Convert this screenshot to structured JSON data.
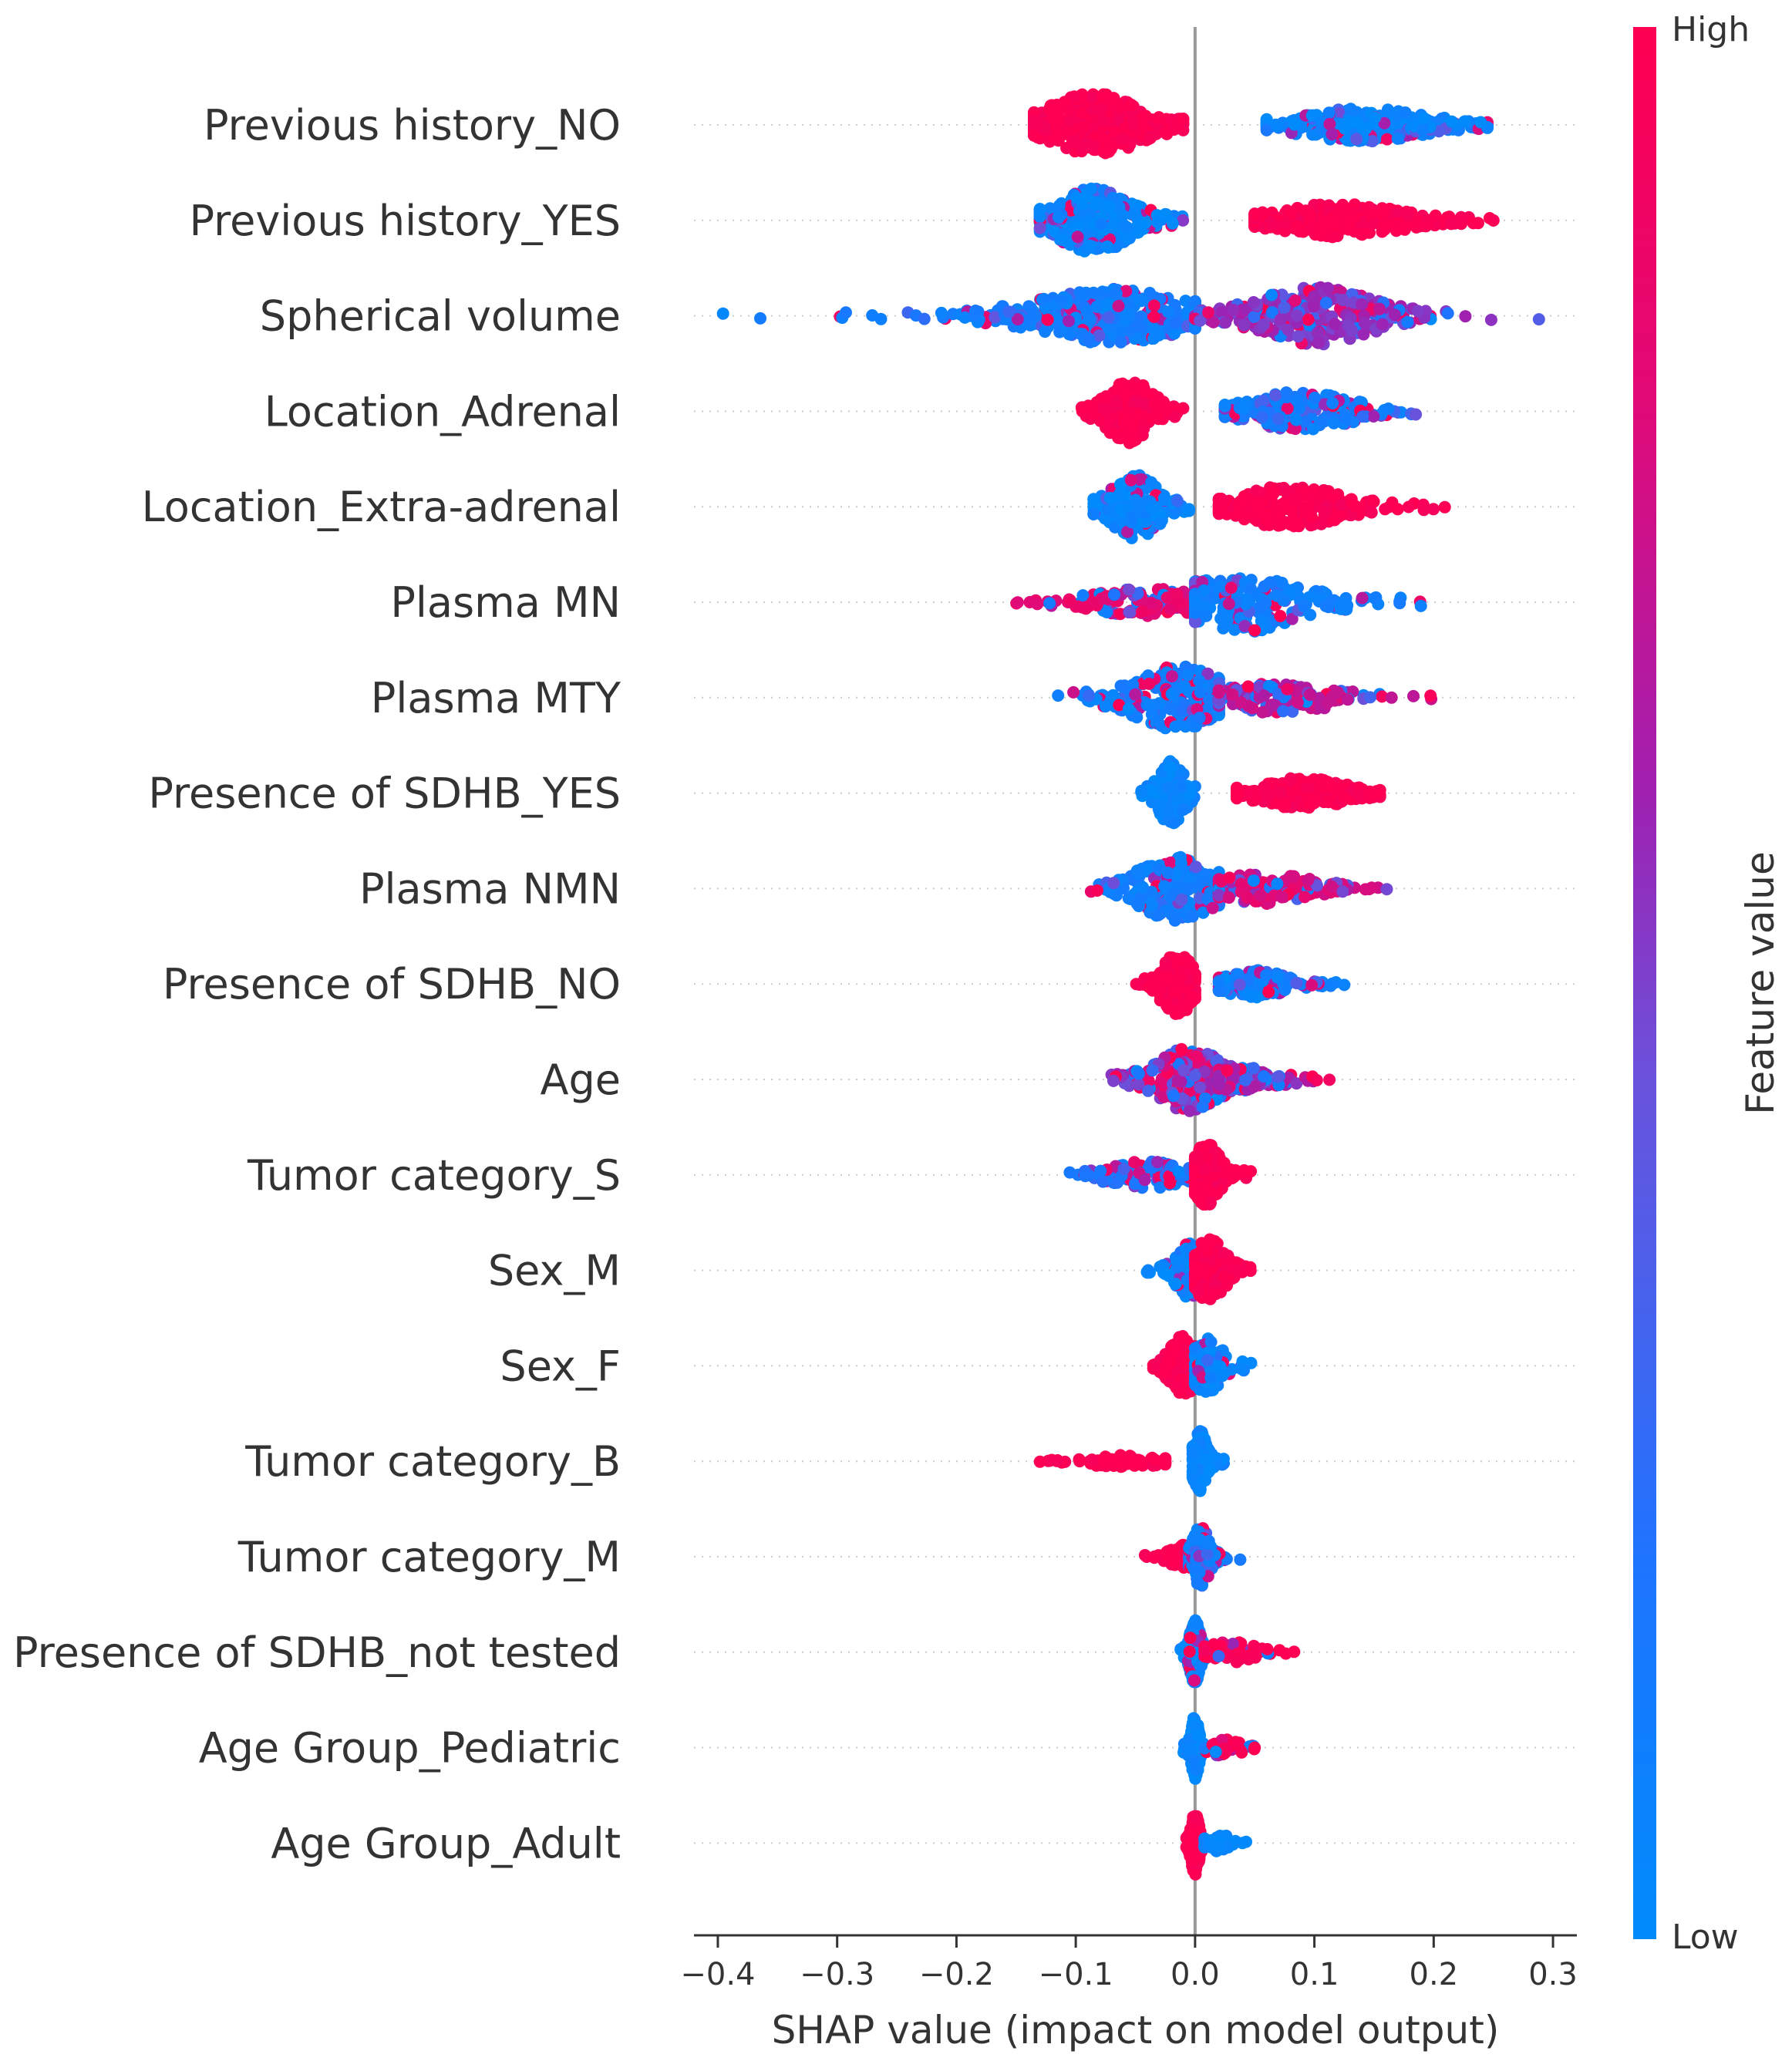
{
  "chart_data": {
    "type": "scatter",
    "subtype": "shap-beeswarm",
    "xlabel": "SHAP value (impact on model output)",
    "xlim": [
      -0.42,
      0.32
    ],
    "xticks": [
      -0.4,
      -0.3,
      -0.2,
      -0.1,
      0.0,
      0.1,
      0.2,
      0.3
    ],
    "xtick_labels": [
      "−0.4",
      "−0.3",
      "−0.2",
      "−0.1",
      "0.0",
      "0.1",
      "0.2",
      "0.3"
    ],
    "colorbar": {
      "title": "Feature value",
      "high_label": "High",
      "low_label": "Low",
      "high_color": "#ff0052",
      "low_color": "#008bfb"
    },
    "features": [
      {
        "name": "Previous history_NO",
        "clusters": [
          {
            "center": -0.085,
            "spread": 0.035,
            "range": [
              -0.135,
              -0.01
            ],
            "n": 320,
            "width": 0.42,
            "color": 1.0
          },
          {
            "center": 0.14,
            "spread": 0.05,
            "range": [
              0.06,
              0.245
            ],
            "n": 300,
            "width": 0.22,
            "color": 0.05,
            "mix": 0.2
          }
        ]
      },
      {
        "name": "Previous history_YES",
        "clusters": [
          {
            "center": -0.085,
            "spread": 0.03,
            "range": [
              -0.13,
              -0.01
            ],
            "n": 300,
            "width": 0.42,
            "color": 0.05,
            "mix": 0.25
          },
          {
            "center": 0.12,
            "spread": 0.05,
            "range": [
              0.05,
              0.25
            ],
            "n": 320,
            "width": 0.22,
            "color": 1.0
          }
        ]
      },
      {
        "name": "Spherical volume",
        "clusters": [
          {
            "center": -0.07,
            "spread": 0.06,
            "range": [
              -0.4,
              0.0
            ],
            "n": 360,
            "width": 0.36,
            "color": 0.1,
            "mix": 0.25
          },
          {
            "center": 0.1,
            "spread": 0.045,
            "range": [
              0.0,
              0.29
            ],
            "n": 300,
            "width": 0.38,
            "color": 0.55,
            "mix": 0.5
          }
        ]
      },
      {
        "name": "Location_Adrenal",
        "clusters": [
          {
            "center": -0.055,
            "spread": 0.018,
            "range": [
              -0.095,
              -0.01
            ],
            "n": 200,
            "width": 0.42,
            "color": 1.0
          },
          {
            "center": 0.09,
            "spread": 0.04,
            "range": [
              0.025,
              0.185
            ],
            "n": 220,
            "width": 0.26,
            "color": 0.1,
            "mix": 0.4
          }
        ]
      },
      {
        "name": "Location_Extra-adrenal",
        "clusters": [
          {
            "center": -0.05,
            "spread": 0.018,
            "range": [
              -0.085,
              -0.005
            ],
            "n": 200,
            "width": 0.42,
            "color": 0.05,
            "mix": 0.2
          },
          {
            "center": 0.08,
            "spread": 0.04,
            "range": [
              0.02,
              0.21
            ],
            "n": 240,
            "width": 0.28,
            "color": 1.0
          }
        ]
      },
      {
        "name": "Plasma MN",
        "clusters": [
          {
            "center": -0.04,
            "spread": 0.045,
            "range": [
              -0.15,
              0.0
            ],
            "n": 160,
            "width": 0.18,
            "color": 0.85,
            "mix": 0.4
          },
          {
            "center": 0.04,
            "spread": 0.045,
            "range": [
              0.0,
              0.195
            ],
            "n": 220,
            "width": 0.4,
            "color": 0.1,
            "mix": 0.2
          }
        ]
      },
      {
        "name": "Plasma MTY",
        "clusters": [
          {
            "center": -0.015,
            "spread": 0.035,
            "range": [
              -0.125,
              0.02
            ],
            "n": 260,
            "width": 0.42,
            "color": 0.1,
            "mix": 0.3
          },
          {
            "center": 0.07,
            "spread": 0.045,
            "range": [
              0.02,
              0.21
            ],
            "n": 160,
            "width": 0.2,
            "color": 0.7,
            "mix": 0.55
          }
        ]
      },
      {
        "name": "Presence of SDHB_YES",
        "clusters": [
          {
            "center": -0.02,
            "spread": 0.01,
            "range": [
              -0.045,
              0.0
            ],
            "n": 150,
            "width": 0.42,
            "color": 0.05
          },
          {
            "center": 0.09,
            "spread": 0.035,
            "range": [
              0.035,
              0.155
            ],
            "n": 200,
            "width": 0.2,
            "color": 1.0
          }
        ]
      },
      {
        "name": "Plasma NMN",
        "clusters": [
          {
            "center": -0.015,
            "spread": 0.03,
            "range": [
              -0.1,
              0.02
            ],
            "n": 230,
            "width": 0.42,
            "color": 0.1,
            "mix": 0.3
          },
          {
            "center": 0.06,
            "spread": 0.04,
            "range": [
              0.02,
              0.17
            ],
            "n": 150,
            "width": 0.2,
            "color": 0.8,
            "mix": 0.4
          }
        ]
      },
      {
        "name": "Presence of SDHB_NO",
        "clusters": [
          {
            "center": -0.015,
            "spread": 0.012,
            "range": [
              -0.05,
              0.0
            ],
            "n": 170,
            "width": 0.42,
            "color": 1.0
          },
          {
            "center": 0.05,
            "spread": 0.025,
            "range": [
              0.02,
              0.125
            ],
            "n": 140,
            "width": 0.18,
            "color": 0.1,
            "mix": 0.3
          }
        ]
      },
      {
        "name": "Age",
        "clusters": [
          {
            "center": -0.005,
            "spread": 0.025,
            "range": [
              -0.07,
              0.03
            ],
            "n": 260,
            "width": 0.42,
            "color": 0.5,
            "mix": 0.9
          },
          {
            "center": 0.04,
            "spread": 0.03,
            "range": [
              0.02,
              0.12
            ],
            "n": 110,
            "width": 0.16,
            "color": 0.6,
            "mix": 0.8
          }
        ]
      },
      {
        "name": "Tumor category_S",
        "clusters": [
          {
            "center": -0.04,
            "spread": 0.03,
            "range": [
              -0.105,
              -0.005
            ],
            "n": 130,
            "width": 0.18,
            "color": 0.2,
            "mix": 0.6
          },
          {
            "center": 0.01,
            "spread": 0.01,
            "range": [
              0.0,
              0.048
            ],
            "n": 170,
            "width": 0.42,
            "color": 1.0
          }
        ]
      },
      {
        "name": "Sex_M",
        "clusters": [
          {
            "center": -0.005,
            "spread": 0.01,
            "range": [
              -0.045,
              0.0
            ],
            "n": 110,
            "width": 0.36,
            "color": 0.05,
            "mix": 0.2
          },
          {
            "center": 0.012,
            "spread": 0.012,
            "range": [
              0.0,
              0.048
            ],
            "n": 150,
            "width": 0.42,
            "color": 1.0
          }
        ]
      },
      {
        "name": "Sex_F",
        "clusters": [
          {
            "center": -0.01,
            "spread": 0.01,
            "range": [
              -0.035,
              0.0
            ],
            "n": 150,
            "width": 0.42,
            "color": 1.0
          },
          {
            "center": 0.01,
            "spread": 0.012,
            "range": [
              0.0,
              0.048
            ],
            "n": 110,
            "width": 0.36,
            "color": 0.05,
            "mix": 0.2
          }
        ]
      },
      {
        "name": "Tumor category_B",
        "clusters": [
          {
            "center": -0.06,
            "spread": 0.03,
            "range": [
              -0.13,
              -0.025
            ],
            "n": 70,
            "width": 0.08,
            "color": 1.0
          },
          {
            "center": 0.004,
            "spread": 0.005,
            "range": [
              -0.002,
              0.025
            ],
            "n": 170,
            "width": 0.42,
            "color": 0.05
          }
        ]
      },
      {
        "name": "Tumor category_M",
        "clusters": [
          {
            "center": -0.01,
            "spread": 0.012,
            "range": [
              -0.042,
              0.0
            ],
            "n": 70,
            "width": 0.16,
            "color": 1.0
          },
          {
            "center": 0.005,
            "spread": 0.006,
            "range": [
              -0.005,
              0.045
            ],
            "n": 180,
            "width": 0.42,
            "color": 0.1,
            "mix": 0.3
          }
        ]
      },
      {
        "name": "Presence of SDHB_not tested",
        "clusters": [
          {
            "center": 0.0,
            "spread": 0.004,
            "range": [
              -0.012,
              0.01
            ],
            "n": 200,
            "width": 0.42,
            "color": 0.05,
            "mix": 0.2
          },
          {
            "center": 0.03,
            "spread": 0.02,
            "range": [
              0.008,
              0.083
            ],
            "n": 60,
            "width": 0.14,
            "color": 1.0,
            "mix": 0.2
          }
        ]
      },
      {
        "name": "Age Group_Pediatric",
        "clusters": [
          {
            "center": 0.0,
            "spread": 0.003,
            "range": [
              -0.01,
              0.008
            ],
            "n": 220,
            "width": 0.42,
            "color": 0.05
          },
          {
            "center": 0.025,
            "spread": 0.012,
            "range": [
              0.008,
              0.05
            ],
            "n": 40,
            "width": 0.12,
            "color": 1.0,
            "mix": 0.3
          }
        ]
      },
      {
        "name": "Age Group_Adult",
        "clusters": [
          {
            "center": 0.0,
            "spread": 0.003,
            "range": [
              -0.008,
              0.008
            ],
            "n": 220,
            "width": 0.42,
            "color": 1.0
          },
          {
            "center": 0.02,
            "spread": 0.01,
            "range": [
              0.008,
              0.045
            ],
            "n": 40,
            "width": 0.12,
            "color": 0.05
          }
        ]
      }
    ]
  }
}
